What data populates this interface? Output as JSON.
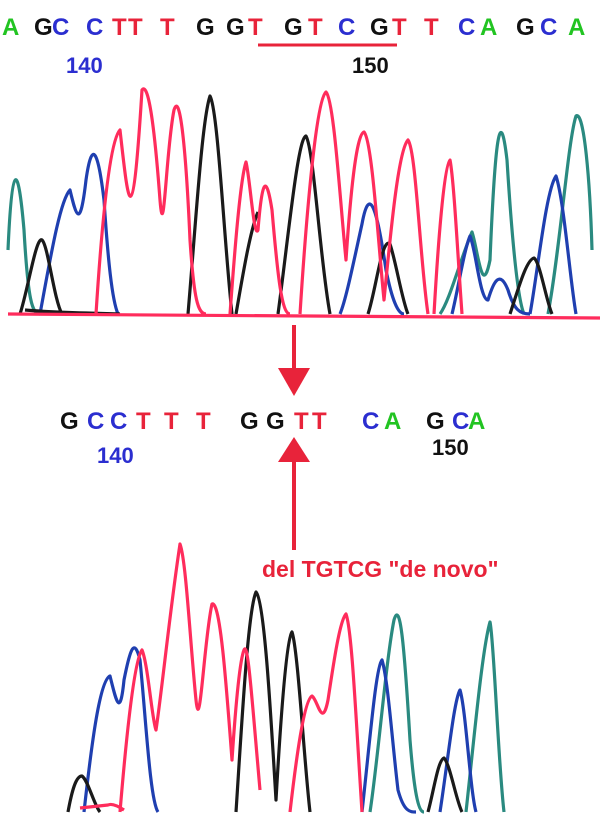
{
  "colors": {
    "A": "#22c422",
    "C": "#2b2ed0",
    "G": "#111111",
    "T": "#e8233a",
    "blue_trace": "#1f3fb0",
    "black_trace": "#1a1a1a",
    "red_trace": "#ff2c5c",
    "teal_trace": "#2a8a80",
    "annotation": "#e8233a"
  },
  "top": {
    "bases": [
      "A",
      "G",
      "C",
      "C",
      "T",
      "T",
      "T",
      "G",
      "G",
      "T",
      "G",
      "T",
      "C",
      "G",
      "T",
      "T",
      "C",
      "A",
      "G",
      "C",
      "A"
    ],
    "pos_140": "140",
    "pos_150": "150"
  },
  "bottom": {
    "bases": [
      "G",
      "C",
      "C",
      "T",
      "T",
      "T",
      "G",
      "G",
      "T",
      "T",
      "C",
      "A",
      "G",
      "C",
      "A"
    ],
    "pos_140": "140",
    "pos_150": "150"
  },
  "deletion_label": "del TGTCG \"de novo\""
}
